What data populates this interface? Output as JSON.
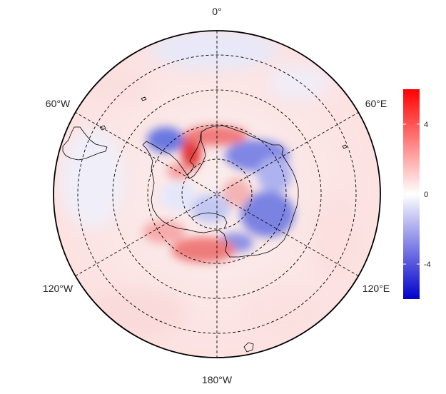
{
  "map": {
    "projection": "south polar stereographic",
    "longitude_labels": {
      "top": "0°",
      "upper_right": "60°E",
      "lower_right": "120°E",
      "bottom": "180°W",
      "lower_left": "120°W",
      "upper_left": "60°W"
    },
    "graticule": "dashed",
    "coastlines": true
  },
  "colorbar": {
    "ticks": [
      "4",
      "0",
      "-4"
    ],
    "tick_values": [
      4,
      0,
      -4
    ],
    "range": [
      -6,
      6
    ],
    "colors": {
      "low": "#0000cc",
      "mid": "#ffffff",
      "high": "#ff0000"
    }
  }
}
